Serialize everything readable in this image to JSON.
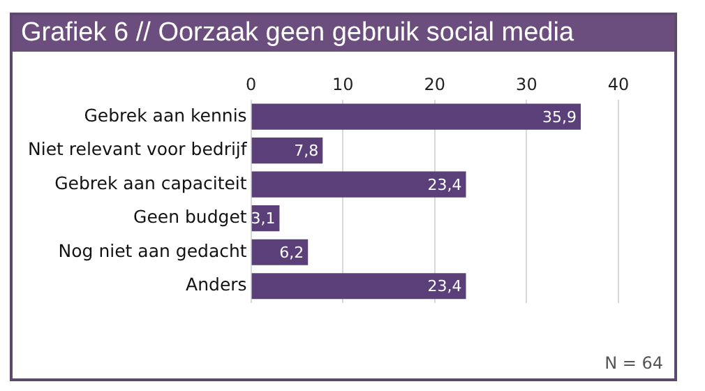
{
  "chart_data": {
    "type": "bar",
    "orientation": "horizontal",
    "title": "Grafiek 6 // Oorzaak geen gebruik social media",
    "categories": [
      "Gebrek aan kennis",
      "Niet relevant voor bedrijf",
      "Gebrek aan capaciteit",
      "Geen budget",
      "Nog niet aan gedacht",
      "Anders"
    ],
    "values": [
      35.9,
      7.8,
      23.4,
      3.1,
      6.2,
      23.4
    ],
    "value_labels": [
      "35,9",
      "7,8",
      "23,4",
      "3,1",
      "6,2",
      "23,4"
    ],
    "color": "#5a3f78",
    "xlim": [
      0,
      40
    ],
    "xticks": [
      0,
      10,
      20,
      30,
      40
    ],
    "grid": "x",
    "legend": false,
    "annotations": [
      "N = 64"
    ]
  }
}
